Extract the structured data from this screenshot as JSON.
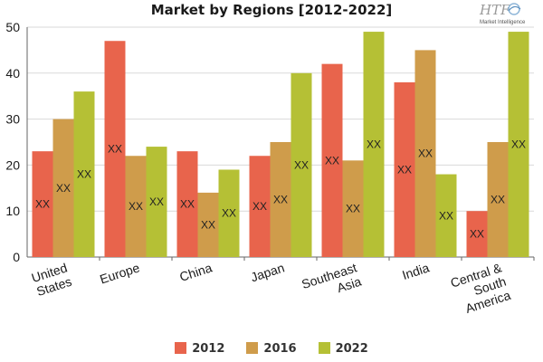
{
  "title": "Market by Regions [2012-2022]",
  "logo": {
    "brand": "HTF",
    "tagline": "Market Intelligence"
  },
  "chart_data": {
    "type": "bar",
    "title": "Market by Regions [2012-2022]",
    "xlabel": "",
    "ylabel": "",
    "ylim": [
      0,
      50
    ],
    "yticks": [
      0,
      10,
      20,
      30,
      40,
      50
    ],
    "grid": true,
    "legend_position": "bottom",
    "categories": [
      "United States",
      "Europe",
      "China",
      "Japan",
      "Southeast Asia",
      "India",
      "Central & South America"
    ],
    "category_lines": [
      [
        "United",
        "States"
      ],
      [
        "Europe"
      ],
      [
        "China"
      ],
      [
        "Japan"
      ],
      [
        "Southeast",
        "Asia"
      ],
      [
        "India"
      ],
      [
        "Central &",
        "South",
        "America"
      ]
    ],
    "data_label": "XX",
    "series": [
      {
        "name": "2012",
        "color": "#e8644c",
        "values": [
          23,
          47,
          23,
          22,
          42,
          38,
          10
        ]
      },
      {
        "name": "2016",
        "color": "#cf9c4b",
        "values": [
          30,
          22,
          14,
          25,
          21,
          45,
          25
        ]
      },
      {
        "name": "2022",
        "color": "#b5c035",
        "values": [
          36,
          24,
          19,
          40,
          49,
          18,
          49
        ]
      }
    ]
  }
}
